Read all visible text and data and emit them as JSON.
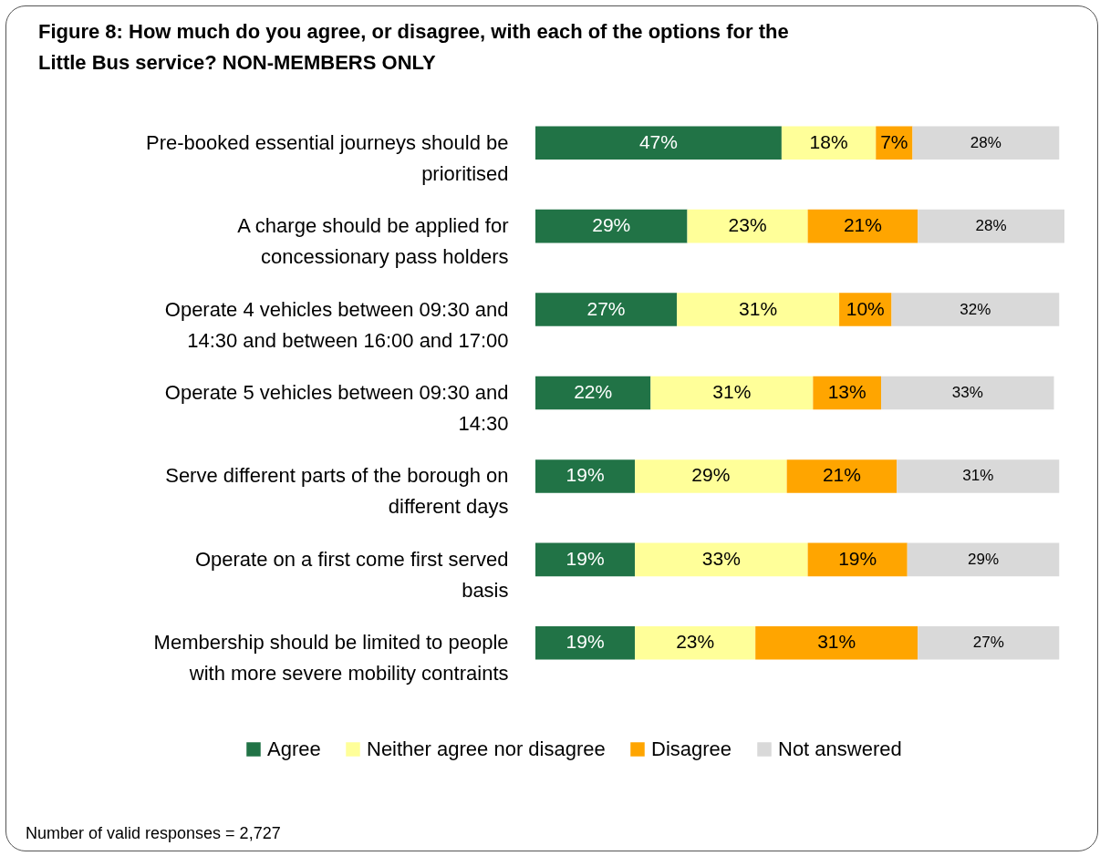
{
  "chart_data": {
    "type": "bar",
    "orientation": "horizontal",
    "stacked": true,
    "title": "Figure 8: How much do you agree, or disagree, with each of the options for the Little Bus service? NON-MEMBERS ONLY",
    "categories": [
      "Pre-booked essential journeys should be prioritised",
      "A charge should be applied for concessionary pass holders",
      "Operate 4 vehicles between 09:30 and 14:30 and between 16:00 and 17:00",
      "Operate 5 vehicles between 09:30 and 14:30",
      "Serve different parts of the borough on different days",
      "Operate on a first come first served basis",
      "Membership should be limited to people with more severe mobility contraints"
    ],
    "series": [
      {
        "name": "Agree",
        "color": "#217346",
        "values": [
          47,
          29,
          27,
          22,
          19,
          19,
          19
        ],
        "value_labels": [
          "47%",
          "29%",
          "27%",
          "22%",
          "19%",
          "19%",
          "19%"
        ]
      },
      {
        "name": "Neither agree nor disagree",
        "color": "#ffff99",
        "values": [
          18,
          23,
          31,
          31,
          29,
          33,
          23
        ],
        "value_labels": [
          "18%",
          "23%",
          "31%",
          "31%",
          "29%",
          "33%",
          "23%"
        ]
      },
      {
        "name": "Disagree",
        "color": "#ffa500",
        "values": [
          7,
          21,
          10,
          13,
          21,
          19,
          31
        ],
        "value_labels": [
          "7%",
          "21%",
          "10%",
          "13%",
          "21%",
          "19%",
          "31%"
        ]
      },
      {
        "name": "Not answered",
        "color": "#d9d9d9",
        "values": [
          28,
          28,
          32,
          33,
          31,
          29,
          27
        ],
        "value_labels": [
          "28%",
          "28%",
          "32%",
          "33%",
          "31%",
          "29%",
          "27%"
        ]
      }
    ],
    "xlim": [
      0,
      101
    ],
    "tick_labels": "y",
    "legend": "bottom",
    "annotations": [
      "Number of valid responses = 2,727"
    ]
  }
}
